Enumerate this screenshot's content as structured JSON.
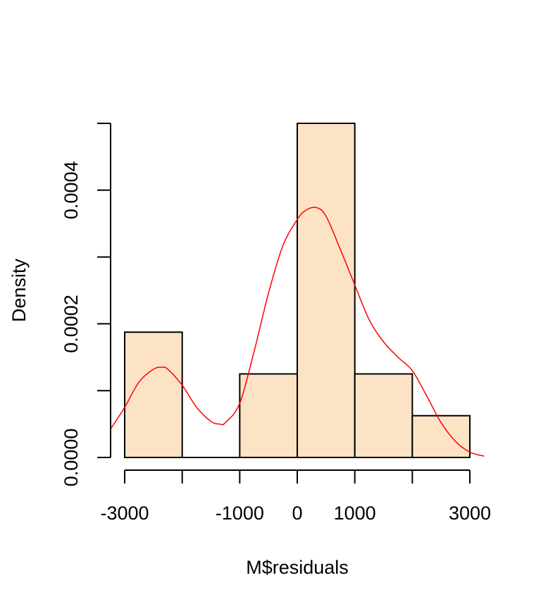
{
  "chart_data": {
    "type": "histogram",
    "title": "",
    "xlabel": "M$residuals",
    "ylabel": "Density",
    "xlim": [
      -3000,
      3000
    ],
    "ylim": [
      0,
      0.0005
    ],
    "x_ticks": [
      -3000,
      -2000,
      -1000,
      0,
      1000,
      2000,
      3000
    ],
    "x_tick_labels": [
      "-3000",
      "",
      "-1000",
      "0",
      "1000",
      "",
      "3000"
    ],
    "y_ticks": [
      0,
      0.0001,
      0.0002,
      0.0003,
      0.0004,
      0.0005
    ],
    "y_tick_labels": [
      "0.0000",
      "",
      "0.0002",
      "",
      "0.0004",
      ""
    ],
    "bins": [
      {
        "x0": -3000,
        "x1": -2000,
        "density": 0.0001875
      },
      {
        "x0": -2000,
        "x1": -1000,
        "density": 0.0
      },
      {
        "x0": -1000,
        "x1": 0,
        "density": 0.000125
      },
      {
        "x0": 0,
        "x1": 1000,
        "density": 0.0005
      },
      {
        "x0": 1000,
        "x1": 2000,
        "density": 0.000125
      },
      {
        "x0": 2000,
        "x1": 3000,
        "density": 6.25e-05
      }
    ],
    "density_curve": {
      "color": "#ff0000",
      "x": [
        -3250,
        -3000,
        -2750,
        -2500,
        -2350,
        -2250,
        -2000,
        -1750,
        -1500,
        -1350,
        -1250,
        -1000,
        -750,
        -500,
        -250,
        0,
        150,
        330,
        500,
        750,
        1000,
        1250,
        1500,
        1750,
        2000,
        2250,
        2500,
        2750,
        3000,
        3250
      ],
      "y": [
        4.2e-05,
        7.5e-05,
        0.000113,
        0.000132,
        0.000135,
        0.000132,
        0.000108,
        7.5e-05,
        5.4e-05,
        5e-05,
        5.2e-05,
        8.1e-05,
        0.000159,
        0.000246,
        0.000317,
        0.000356,
        0.00037,
        0.000374,
        0.000361,
        0.000311,
        0.000258,
        0.000206,
        0.000173,
        0.00015,
        0.00013,
        9.2e-05,
        5.2e-05,
        2.4e-05,
        8e-06,
        2e-06
      ]
    },
    "colors": {
      "bar_fill": "#fde3c5",
      "bar_stroke": "#000000",
      "curve": "#ff0000"
    },
    "grid": false
  }
}
